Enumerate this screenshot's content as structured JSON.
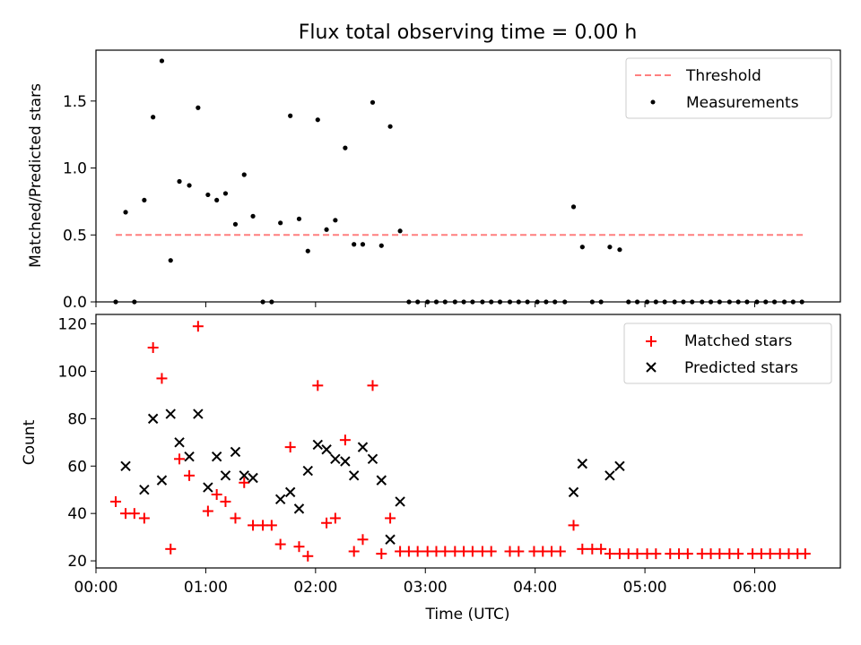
{
  "title": "Flux total observing time = 0.00 h",
  "colors": {
    "threshold": "#ff7f7f",
    "matched": "#ff0000",
    "predicted": "#000000",
    "measurement": "#000000"
  },
  "chart_data": [
    {
      "type": "scatter",
      "ylabel": "Matched/Predicted stars",
      "ylim": [
        0,
        1.88
      ],
      "xlim_hours": [
        -0.0,
        6.78
      ],
      "yticks": [
        {
          "v": 0,
          "label": "0.0"
        },
        {
          "v": 0.5,
          "label": "0.5"
        },
        {
          "v": 1.0,
          "label": "1.0"
        },
        {
          "v": 1.5,
          "label": "1.5"
        }
      ],
      "legend": {
        "position": "top-right",
        "entries": [
          "Threshold",
          "Measurements"
        ]
      },
      "threshold": {
        "name": "Threshold",
        "value": 0.5,
        "x": [
          0.18,
          6.46
        ]
      },
      "series": [
        {
          "name": "Measurements",
          "x": [
            0.18,
            0.27,
            0.35,
            0.44,
            0.52,
            0.6,
            0.68,
            0.76,
            0.85,
            0.93,
            1.02,
            1.1,
            1.18,
            1.27,
            1.35,
            1.43,
            1.52,
            1.6,
            1.68,
            1.77,
            1.85,
            1.93,
            2.02,
            2.1,
            2.18,
            2.27,
            2.35,
            2.43,
            2.52,
            2.6,
            2.68,
            2.77,
            2.85,
            2.93,
            3.02,
            3.1,
            3.18,
            3.27,
            3.35,
            3.43,
            3.52,
            3.6,
            3.68,
            3.77,
            3.85,
            3.93,
            4.02,
            4.1,
            4.18,
            4.27,
            4.35,
            4.43,
            4.52,
            4.6,
            4.68,
            4.77,
            4.85,
            4.93,
            5.02,
            5.1,
            5.18,
            5.27,
            5.35,
            5.43,
            5.52,
            5.6,
            5.68,
            5.77,
            5.85,
            5.93,
            6.02,
            6.1,
            6.18,
            6.27,
            6.35,
            6.43
          ],
          "y": [
            0,
            0.67,
            0,
            0.76,
            1.38,
            1.8,
            0.31,
            0.9,
            0.87,
            1.45,
            0.8,
            0.76,
            0.81,
            0.58,
            0.95,
            0.64,
            0,
            0,
            0.59,
            1.39,
            0.62,
            0.38,
            1.36,
            0.54,
            0.61,
            1.15,
            0.43,
            0.43,
            1.49,
            0.42,
            1.31,
            0.53,
            0,
            0,
            0,
            0,
            0,
            0,
            0,
            0,
            0,
            0,
            0,
            0,
            0,
            0,
            0,
            0,
            0,
            0,
            0.71,
            0.41,
            0,
            0,
            0.41,
            0.39,
            0,
            0,
            0,
            0,
            0,
            0,
            0,
            0,
            0,
            0,
            0,
            0,
            0,
            0,
            0,
            0,
            0,
            0,
            0,
            0
          ]
        }
      ]
    },
    {
      "type": "scatter",
      "xlabel": "Time (UTC)",
      "ylabel": "Count",
      "ylim": [
        17,
        124
      ],
      "xlim_hours": [
        -0.0,
        6.78
      ],
      "yticks": [
        {
          "v": 20,
          "label": "20"
        },
        {
          "v": 40,
          "label": "40"
        },
        {
          "v": 60,
          "label": "60"
        },
        {
          "v": 80,
          "label": "80"
        },
        {
          "v": 100,
          "label": "100"
        },
        {
          "v": 120,
          "label": "120"
        }
      ],
      "xticks": [
        {
          "v": 0,
          "label": "00:00"
        },
        {
          "v": 1,
          "label": "01:00"
        },
        {
          "v": 2,
          "label": "02:00"
        },
        {
          "v": 3,
          "label": "03:00"
        },
        {
          "v": 4,
          "label": "04:00"
        },
        {
          "v": 5,
          "label": "05:00"
        },
        {
          "v": 6,
          "label": "06:00"
        }
      ],
      "legend": {
        "position": "top-right",
        "entries": [
          "Matched stars",
          "Predicted stars"
        ]
      },
      "series": [
        {
          "name": "Matched stars",
          "x": [
            0.18,
            0.27,
            0.35,
            0.44,
            0.52,
            0.6,
            0.68,
            0.76,
            0.85,
            0.93,
            1.02,
            1.1,
            1.18,
            1.27,
            1.35,
            1.43,
            1.52,
            1.6,
            1.68,
            1.77,
            1.85,
            1.93,
            2.02,
            2.1,
            2.18,
            2.27,
            2.35,
            2.43,
            2.52,
            2.6,
            2.68,
            2.77,
            2.85,
            2.93,
            3.02,
            3.1,
            3.18,
            3.27,
            3.35,
            3.43,
            3.52,
            3.6,
            3.77,
            3.85,
            3.99,
            4.07,
            4.15,
            4.23,
            4.35,
            4.43,
            4.52,
            4.6,
            4.68,
            4.77,
            4.85,
            4.93,
            5.02,
            5.1,
            5.23,
            5.31,
            5.39,
            5.52,
            5.6,
            5.68,
            5.77,
            5.85,
            5.98,
            6.06,
            6.14,
            6.23,
            6.31,
            6.39,
            6.46
          ],
          "y": [
            45,
            40,
            40,
            38,
            110,
            97,
            25,
            63,
            56,
            119,
            41,
            48,
            45,
            38,
            53,
            35,
            35,
            35,
            27,
            68,
            26,
            22,
            94,
            36,
            38,
            71,
            24,
            29,
            94,
            23,
            38,
            24,
            24,
            24,
            24,
            24,
            24,
            24,
            24,
            24,
            24,
            24,
            24,
            24,
            24,
            24,
            24,
            24,
            35,
            25,
            25,
            25,
            23,
            23,
            23,
            23,
            23,
            23,
            23,
            23,
            23,
            23,
            23,
            23,
            23,
            23,
            23,
            23,
            23,
            23,
            23,
            23,
            23
          ]
        },
        {
          "name": "Predicted stars",
          "x": [
            0.27,
            0.44,
            0.52,
            0.6,
            0.68,
            0.76,
            0.85,
            0.93,
            1.02,
            1.1,
            1.18,
            1.27,
            1.35,
            1.43,
            1.68,
            1.77,
            1.85,
            1.93,
            2.02,
            2.1,
            2.18,
            2.27,
            2.35,
            2.43,
            2.52,
            2.6,
            2.68,
            2.77,
            4.35,
            4.43,
            4.68,
            4.77
          ],
          "y": [
            60,
            50,
            80,
            54,
            82,
            70,
            64,
            82,
            51,
            64,
            56,
            66,
            56,
            55,
            46,
            49,
            42,
            58,
            69,
            67,
            63,
            62,
            56,
            68,
            63,
            54,
            29,
            45,
            49,
            61,
            56,
            60
          ]
        }
      ]
    }
  ]
}
